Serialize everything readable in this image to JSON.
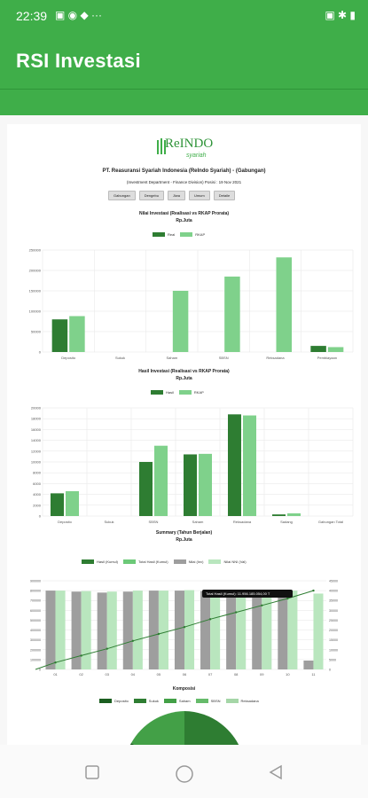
{
  "status_bar": {
    "time": "22:39",
    "left_icons": "▣ ◉ ◆ ···",
    "right_icons": "▣ ✱ ▮"
  },
  "app": {
    "title": "RSI Investasi"
  },
  "logo": {
    "text": "ReINDO",
    "subtext": "syariah"
  },
  "report": {
    "company": "PT. Reasuransi Syariah Indonesia (ReIndo Syariah) - (Gabungan)",
    "department": "(Investment Department - Finance Division) Posisi : 19 Nov 2021",
    "tabs": [
      "Gabungan",
      "Dengebu",
      "Jiwa",
      "Umum",
      "Detaile"
    ]
  },
  "chart_data": [
    {
      "type": "bar",
      "title": "Nilai Investasi (Realisasi vs RKAP Prorata)",
      "subtitle": "Rp.Juta",
      "categories": [
        "Deposito",
        "Sukuk",
        "Saham",
        "SBSN",
        "Reksadana",
        "Pembiayaan"
      ],
      "series": [
        {
          "name": "Real",
          "values": [
            80000,
            0,
            0,
            0,
            0,
            15000
          ]
        },
        {
          "name": "RKAP",
          "values": [
            88000,
            0,
            150000,
            185000,
            232000,
            12000
          ]
        }
      ],
      "ylim": [
        0,
        250000
      ],
      "ticks": [
        "250000",
        "200000",
        "150000",
        "100000",
        "50000",
        "0"
      ]
    },
    {
      "type": "bar",
      "title": "Hasil Investasi (Realisasi vs RKAP Prorata)",
      "subtitle": "Rp.Juta",
      "categories": [
        "Deposito",
        "Sukuk",
        "SBSN",
        "Saham",
        "Reksadana",
        "Sadang",
        "Gabungan Total"
      ],
      "series": [
        {
          "name": "Hasil",
          "values": [
            4200,
            0,
            10000,
            11400,
            18800,
            300,
            0
          ]
        },
        {
          "name": "RKAP",
          "values": [
            4600,
            0,
            13000,
            11500,
            18600,
            500,
            0
          ]
        }
      ],
      "ylim": [
        0,
        20000
      ],
      "ticks": [
        "20000",
        "18000",
        "16000",
        "14000",
        "12000",
        "10000",
        "8000",
        "6000",
        "4000",
        "2000",
        "0"
      ]
    },
    {
      "type": "bar",
      "title": "Summary (Tahun Berjalan)",
      "subtitle": "Rp.Juta",
      "legend": [
        "Hasil (Kumul)",
        "Total Hasil (Kumul)",
        "Nilai (Inv)",
        "Nilai NNI (Val)"
      ],
      "categories": [
        "01",
        "02",
        "03",
        "04",
        "05",
        "06",
        "07",
        "08",
        "09",
        "10",
        "11"
      ],
      "series": [
        {
          "name": "Nilai (Inv)",
          "values": [
            800000,
            790000,
            780000,
            790000,
            800000,
            800000,
            795000,
            790000,
            800000,
            790000,
            90000
          ]
        },
        {
          "name": "Nilai NNI (Val)",
          "values": [
            800000,
            795000,
            790000,
            800000,
            800000,
            805000,
            800000,
            795000,
            800000,
            800000,
            770000
          ]
        },
        {
          "name": "Hasil (Kumul)",
          "values": [
            3500,
            7000,
            10500,
            14500,
            18000,
            21500,
            25500,
            29000,
            32500,
            36000,
            40000
          ]
        }
      ],
      "ylim": [
        0,
        900000
      ],
      "ticks_left": [
        "900000",
        "800000",
        "700000",
        "600000",
        "500000",
        "400000",
        "300000",
        "200000",
        "100000",
        "0"
      ],
      "ticks_right": [
        "45000",
        "40000",
        "35000",
        "30000",
        "25000",
        "20000",
        "15000",
        "10000",
        "5000",
        "0"
      ],
      "tooltip": "Total Hasil (Kumul): 11.956.185.054,00 T"
    },
    {
      "type": "pie",
      "title": "Komposisi",
      "legend": [
        "Deposito",
        "Sukuk",
        "Saham",
        "SBSN",
        "Reksadana"
      ]
    }
  ],
  "colors": {
    "dark": "#2e7d32",
    "light": "#7fd18b",
    "mid": "#43a047",
    "grey": "#9e9e9e"
  },
  "nav": {
    "square": "square-icon",
    "circle": "home-circle-icon",
    "back": "back-triangle-icon"
  }
}
